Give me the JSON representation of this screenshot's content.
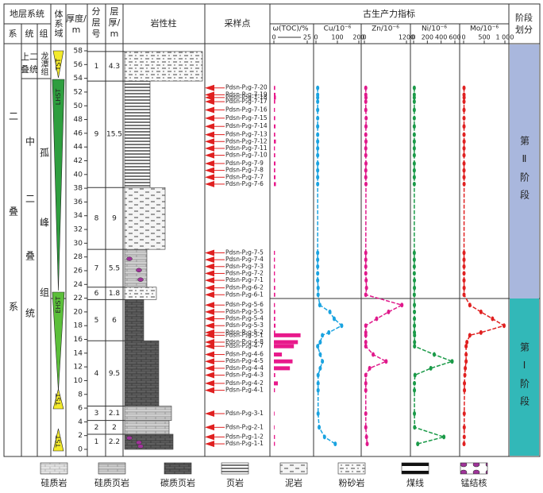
{
  "header": {
    "strat_system": "地层系统",
    "system": "系",
    "series": "统",
    "formation": "组",
    "systems_tract": "体系域",
    "thickness": [
      "厚度/",
      "m"
    ],
    "layer_no": [
      "分",
      "层",
      "号"
    ],
    "layer_thickness": [
      "层",
      "厚/",
      "m"
    ],
    "lithology": "岩性柱",
    "samples": "采样点",
    "paleo": "古生产力指标",
    "stage": [
      "阶段",
      "划分"
    ]
  },
  "strata": {
    "system": "二叠系",
    "series_upper": [
      "上二",
      "叠统"
    ],
    "series_middle": "中二叠统",
    "formation_upper": "龙潭组",
    "formation_lower": "孤峰组"
  },
  "tracts": [
    "TST",
    "LHST",
    "EHST",
    "TST",
    "TST"
  ],
  "stages": [
    "第Ⅱ阶段",
    "第Ⅰ阶段"
  ],
  "depth_ticks": [
    0,
    2,
    4,
    6,
    8,
    10,
    12,
    14,
    16,
    18,
    20,
    22,
    24,
    26,
    28,
    30,
    32,
    34,
    36,
    38,
    40,
    42,
    44,
    46,
    48,
    50,
    52,
    54,
    56,
    58
  ],
  "layers": [
    {
      "no": "1",
      "thickness": 4.3,
      "lith": 5
    },
    {
      "no": "9",
      "thickness": 15.5,
      "lith": 3
    },
    {
      "no": "8",
      "thickness": 9,
      "lith": 4
    },
    {
      "no": "7",
      "thickness": 5.5,
      "lith": 1
    },
    {
      "no": "6",
      "thickness": 1.8,
      "lith": 5
    },
    {
      "no": "5",
      "thickness": 6,
      "lith": 2
    },
    {
      "no": "4",
      "thickness": 9.5,
      "lith": 2
    },
    {
      "no": "3",
      "thickness": 2.1,
      "lith": 1
    },
    {
      "no": "2",
      "thickness": 2,
      "lith": 1
    },
    {
      "no": "1",
      "thickness": 2.2,
      "lith": 2
    }
  ],
  "samples": {
    "labels": [
      "Pdsn-P₂g-7-20",
      "Pdsn-P₂g-7-19",
      "Pdsn-P₂g-7-18",
      "Pdsn-P₂g-7-17",
      "Pdsn-P₂g-7-16",
      "Pdsn-P₂g-7-15",
      "Pdsn-P₂g-7-14",
      "Pdsn-P₂g-7-13",
      "Pdsn-P₂g-7-12",
      "Pdsn-P₂g-7-11",
      "Pdsn-P₂g-7-10",
      "Pdsn-P₂g-7-9",
      "Pdsn-P₂g-7-8",
      "Pdsn-P₂g-7-7",
      "Pdsn-P₂g-7-6",
      "Pdsn-P₂g-7-5",
      "Pdsn-P₂g-7-4",
      "Pdsn-P₂g-7-3",
      "Pdsn-P₂g-7-2",
      "Pdsn-P₂g-7-1",
      "Pdsn-P₂g-6-2",
      "Pdsn-P₂g-6-1",
      "Pdsn-P₂g-5-6",
      "Pdsn-P₂g-5-5",
      "Pdsn-P₂g-5-4",
      "Pdsn-P₂g-5-3",
      "Pdsn-P₂g-5-2",
      "Pdsn-P₂g-5-1",
      "Pdsn-P₂g-4-8",
      "Pdsn-P₂g-4-7",
      "Pdsn-P₂g-4-6",
      "Pdsn-P₂g-4-5",
      "Pdsn-P₂g-4-4",
      "Pdsn-P₂g-4-3",
      "Pdsn-P₂g-4-2",
      "Pdsn-P₂g-4-1",
      "Pdsn-P₂g-3-1",
      "Pdsn-P₂g-2-1",
      "Pdsn-P₂g-1-2",
      "Pdsn-P₂g-1-1"
    ],
    "depths": [
      52.6,
      51.6,
      51.2,
      50.6,
      49.4,
      48.2,
      47,
      45.8,
      44.8,
      43.8,
      42.8,
      41.6,
      40.6,
      39.6,
      38.6,
      28.6,
      27.6,
      26.6,
      25.6,
      24.6,
      23.5,
      22.5,
      21,
      20,
      19,
      18,
      17,
      16.6,
      15.6,
      15,
      13.8,
      12.8,
      11.8,
      10.8,
      9.6,
      8.6,
      5.2,
      3.2,
      1.8,
      0.8
    ]
  },
  "indicators": [
    {
      "name": "ω(TOC)/%",
      "type": "bar",
      "color": "#e8198b",
      "xlim": [
        0,
        25
      ],
      "ticks": [
        0,
        25
      ],
      "values": [
        1,
        1.2,
        1.5,
        1,
        0.8,
        1,
        1.2,
        1,
        1.5,
        0.8,
        1,
        1.2,
        1,
        1.2,
        1.5,
        0.8,
        0.8,
        0.8,
        0.8,
        0.8,
        1,
        1,
        0.8,
        1,
        1,
        1.2,
        1,
        20,
        18,
        15,
        6,
        14,
        12,
        1,
        3,
        0.8,
        0.5,
        0.5,
        0.8,
        0.8
      ]
    },
    {
      "name": "Cu/10⁻⁶",
      "type": "line",
      "color": "#1aa3e0",
      "xlim": [
        0,
        200
      ],
      "ticks": [
        0,
        100,
        200
      ],
      "values": [
        8,
        8,
        8,
        8,
        8,
        8,
        8,
        8,
        8,
        8,
        8,
        8,
        8,
        8,
        8,
        8,
        8,
        8,
        8,
        8,
        10,
        10,
        18,
        65,
        85,
        120,
        60,
        30,
        20,
        8,
        20,
        30,
        20,
        10,
        10,
        10,
        10,
        15,
        40,
        90
      ]
    },
    {
      "name": "Zn/10⁻⁶",
      "type": "line",
      "color": "#e0198b",
      "xlim": [
        0,
        1200
      ],
      "ticks": [
        0,
        1200
      ],
      "values": [
        40,
        40,
        45,
        40,
        40,
        50,
        45,
        40,
        45,
        40,
        40,
        45,
        40,
        40,
        45,
        40,
        40,
        40,
        40,
        50,
        60,
        40,
        1070,
        690,
        350,
        40,
        40,
        40,
        40,
        40,
        250,
        620,
        150,
        40,
        40,
        40,
        40,
        40,
        60,
        80
      ]
    },
    {
      "name": "Ni/10⁻⁶",
      "type": "line",
      "color": "#1a9a48",
      "xlim": [
        0,
        600
      ],
      "ticks": [
        0,
        200,
        400,
        600
      ],
      "values": [
        10,
        10,
        10,
        10,
        10,
        10,
        10,
        10,
        10,
        10,
        10,
        10,
        10,
        10,
        10,
        10,
        10,
        10,
        10,
        12,
        12,
        10,
        12,
        12,
        12,
        12,
        12,
        14,
        14,
        14,
        300,
        560,
        250,
        20,
        12,
        12,
        12,
        15,
        440,
        60
      ]
    },
    {
      "name": "Mo/10⁻⁶",
      "type": "line",
      "color": "#e02020",
      "xlim": [
        0,
        1000
      ],
      "ticks": [
        0,
        500,
        {
          "value": 1000,
          "label": "1 000"
        }
      ],
      "values": [
        10,
        10,
        12,
        10,
        10,
        10,
        10,
        10,
        12,
        10,
        10,
        10,
        10,
        10,
        12,
        10,
        10,
        10,
        10,
        10,
        12,
        10,
        150,
        420,
        700,
        980,
        420,
        150,
        80,
        60,
        60,
        60,
        40,
        30,
        20,
        20,
        15,
        15,
        15,
        10
      ]
    }
  ],
  "legend": [
    "硅质岩",
    "硅质页岩",
    "碳质页岩",
    "页岩",
    "泥岩",
    "粉砂岩",
    "煤线",
    "锰结核"
  ]
}
